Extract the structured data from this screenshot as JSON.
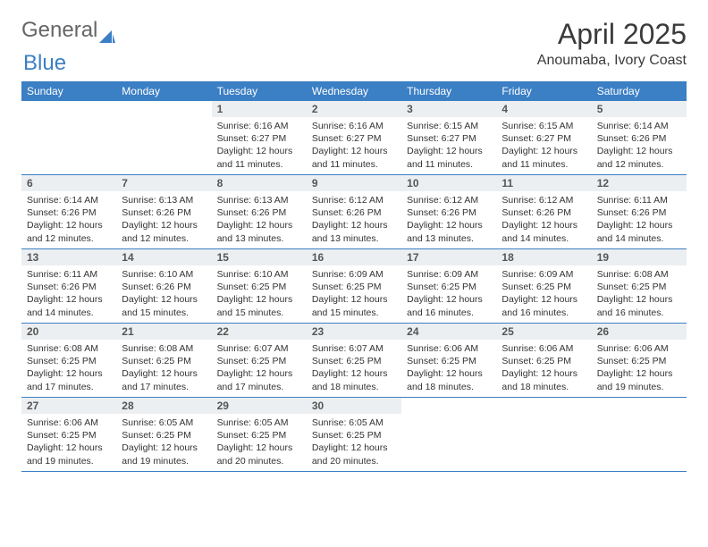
{
  "logo": {
    "text1": "General",
    "text2": "Blue",
    "icon_color": "#3b7fc4"
  },
  "title": "April 2025",
  "location": "Anoumaba, Ivory Coast",
  "colors": {
    "header_bg": "#3b7fc4",
    "header_text": "#ffffff",
    "daynum_bg": "#eceff1",
    "week_border": "#3b7fc4",
    "body_text": "#333333"
  },
  "weekdays": [
    "Sunday",
    "Monday",
    "Tuesday",
    "Wednesday",
    "Thursday",
    "Friday",
    "Saturday"
  ],
  "weeks": [
    [
      null,
      null,
      {
        "n": "1",
        "sr": "6:16 AM",
        "ss": "6:27 PM",
        "dl": "12 hours and 11 minutes."
      },
      {
        "n": "2",
        "sr": "6:16 AM",
        "ss": "6:27 PM",
        "dl": "12 hours and 11 minutes."
      },
      {
        "n": "3",
        "sr": "6:15 AM",
        "ss": "6:27 PM",
        "dl": "12 hours and 11 minutes."
      },
      {
        "n": "4",
        "sr": "6:15 AM",
        "ss": "6:27 PM",
        "dl": "12 hours and 11 minutes."
      },
      {
        "n": "5",
        "sr": "6:14 AM",
        "ss": "6:26 PM",
        "dl": "12 hours and 12 minutes."
      }
    ],
    [
      {
        "n": "6",
        "sr": "6:14 AM",
        "ss": "6:26 PM",
        "dl": "12 hours and 12 minutes."
      },
      {
        "n": "7",
        "sr": "6:13 AM",
        "ss": "6:26 PM",
        "dl": "12 hours and 12 minutes."
      },
      {
        "n": "8",
        "sr": "6:13 AM",
        "ss": "6:26 PM",
        "dl": "12 hours and 13 minutes."
      },
      {
        "n": "9",
        "sr": "6:12 AM",
        "ss": "6:26 PM",
        "dl": "12 hours and 13 minutes."
      },
      {
        "n": "10",
        "sr": "6:12 AM",
        "ss": "6:26 PM",
        "dl": "12 hours and 13 minutes."
      },
      {
        "n": "11",
        "sr": "6:12 AM",
        "ss": "6:26 PM",
        "dl": "12 hours and 14 minutes."
      },
      {
        "n": "12",
        "sr": "6:11 AM",
        "ss": "6:26 PM",
        "dl": "12 hours and 14 minutes."
      }
    ],
    [
      {
        "n": "13",
        "sr": "6:11 AM",
        "ss": "6:26 PM",
        "dl": "12 hours and 14 minutes."
      },
      {
        "n": "14",
        "sr": "6:10 AM",
        "ss": "6:26 PM",
        "dl": "12 hours and 15 minutes."
      },
      {
        "n": "15",
        "sr": "6:10 AM",
        "ss": "6:25 PM",
        "dl": "12 hours and 15 minutes."
      },
      {
        "n": "16",
        "sr": "6:09 AM",
        "ss": "6:25 PM",
        "dl": "12 hours and 15 minutes."
      },
      {
        "n": "17",
        "sr": "6:09 AM",
        "ss": "6:25 PM",
        "dl": "12 hours and 16 minutes."
      },
      {
        "n": "18",
        "sr": "6:09 AM",
        "ss": "6:25 PM",
        "dl": "12 hours and 16 minutes."
      },
      {
        "n": "19",
        "sr": "6:08 AM",
        "ss": "6:25 PM",
        "dl": "12 hours and 16 minutes."
      }
    ],
    [
      {
        "n": "20",
        "sr": "6:08 AM",
        "ss": "6:25 PM",
        "dl": "12 hours and 17 minutes."
      },
      {
        "n": "21",
        "sr": "6:08 AM",
        "ss": "6:25 PM",
        "dl": "12 hours and 17 minutes."
      },
      {
        "n": "22",
        "sr": "6:07 AM",
        "ss": "6:25 PM",
        "dl": "12 hours and 17 minutes."
      },
      {
        "n": "23",
        "sr": "6:07 AM",
        "ss": "6:25 PM",
        "dl": "12 hours and 18 minutes."
      },
      {
        "n": "24",
        "sr": "6:06 AM",
        "ss": "6:25 PM",
        "dl": "12 hours and 18 minutes."
      },
      {
        "n": "25",
        "sr": "6:06 AM",
        "ss": "6:25 PM",
        "dl": "12 hours and 18 minutes."
      },
      {
        "n": "26",
        "sr": "6:06 AM",
        "ss": "6:25 PM",
        "dl": "12 hours and 19 minutes."
      }
    ],
    [
      {
        "n": "27",
        "sr": "6:06 AM",
        "ss": "6:25 PM",
        "dl": "12 hours and 19 minutes."
      },
      {
        "n": "28",
        "sr": "6:05 AM",
        "ss": "6:25 PM",
        "dl": "12 hours and 19 minutes."
      },
      {
        "n": "29",
        "sr": "6:05 AM",
        "ss": "6:25 PM",
        "dl": "12 hours and 20 minutes."
      },
      {
        "n": "30",
        "sr": "6:05 AM",
        "ss": "6:25 PM",
        "dl": "12 hours and 20 minutes."
      },
      null,
      null,
      null
    ]
  ],
  "labels": {
    "sunrise": "Sunrise:",
    "sunset": "Sunset:",
    "daylight": "Daylight:"
  }
}
